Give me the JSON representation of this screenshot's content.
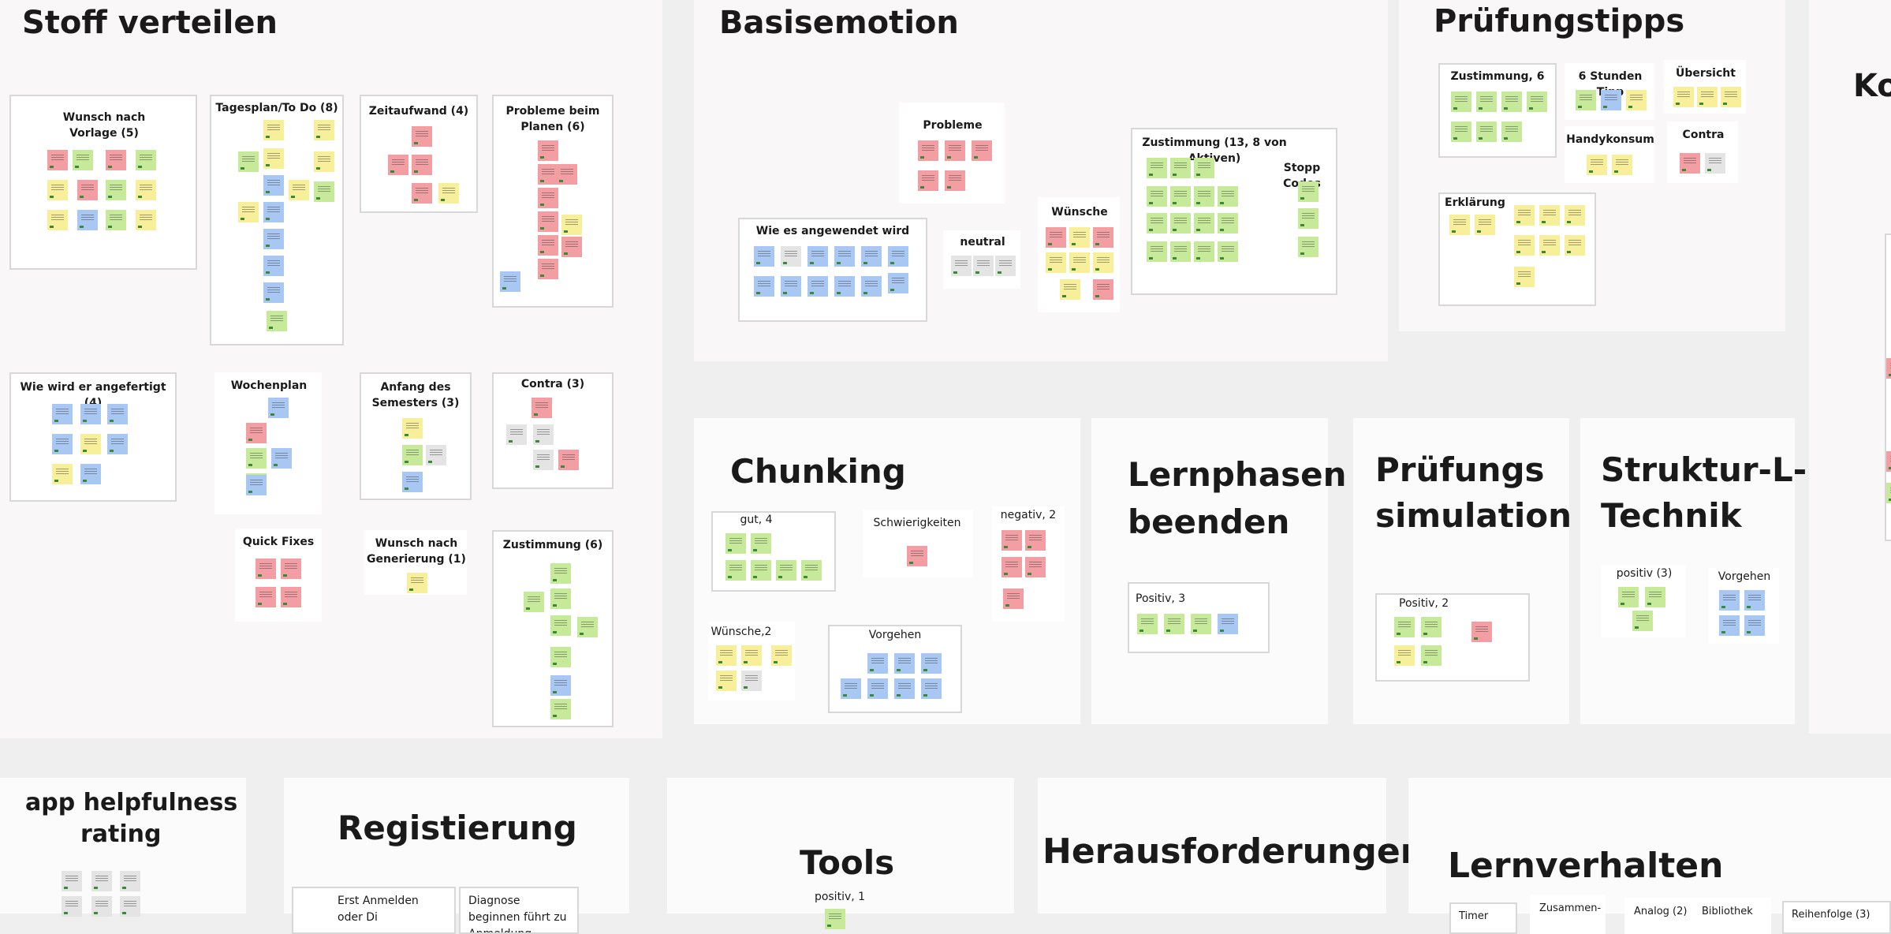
{
  "board": {
    "stoff_verteilen": {
      "title": "Stoff verteilen",
      "groups": {
        "wunsch_vorlage": "Wunsch nach Vorlage (5)",
        "tagesplan": "Tagesplan/To Do (8)",
        "zeitaufwand": "Zeitaufwand (4)",
        "probleme_planen": "Probleme beim Planen (6)",
        "wie_angefertigt": "Wie wird er angefertigt (4)",
        "wochenplan": "Wochenplan",
        "anfang_semester": "Anfang des Semesters (3)",
        "contra": "Contra (3)",
        "quick_fixes": "Quick Fixes",
        "wunsch_generierung": "Wunsch nach Generierung (1)",
        "zustimmung": "Zustimmung (6)"
      }
    },
    "basisemotion": {
      "title": "Basisemotion",
      "groups": {
        "probleme": "Probleme",
        "wie_angewendet": "Wie es angewendet wird",
        "neutral": "neutral",
        "wuensche": "Wünsche",
        "zustimmung": "Zustimmung (13, 8 von Aktiven)",
        "stopp_codes": "Stopp Codes"
      }
    },
    "pruefungstipps": {
      "title": "Prüfungstipps",
      "groups": {
        "zustimmung": "Zustimmung, 6",
        "sechs_stunden": "6 Stunden Tipp",
        "uebersicht": "Übersicht",
        "handykonsum": "Handykonsum",
        "contra": "Contra",
        "erklaerung": "Erklärung"
      }
    },
    "ko_partial": {
      "title": "Ko"
    },
    "chunking": {
      "title": "Chunking",
      "groups": {
        "gut": "gut, 4",
        "schwierigkeiten": "Schwierigkeiten",
        "negativ": "negativ, 2",
        "wuensche": "Wünsche,2",
        "vorgehen": "Vorgehen"
      }
    },
    "lernphasen": {
      "title_line1": "Lernphasen",
      "title_line2": "beenden",
      "groups": {
        "positiv": "Positiv, 3"
      }
    },
    "pruefungssimulation": {
      "title_line1": "Prüfungs",
      "title_line2": "simulation",
      "groups": {
        "positiv": "Positiv, 2"
      }
    },
    "struktur": {
      "title_line1": "Struktur-L-",
      "title_line2": "Technik",
      "groups": {
        "positiv": "positiv (3)",
        "vorgehen": "Vorgehen"
      }
    },
    "app_rating": {
      "title_line1": "app helpfulness",
      "title_line2": "rating"
    },
    "registrierung": {
      "title": "Registierung",
      "cards": {
        "erst_anmelden": "Erst Anmelden oder Di",
        "diagnose": "Diagnose beginnen führt zu Anmeldung"
      }
    },
    "tools": {
      "title": "Tools",
      "groups": {
        "positiv": "positiv, 1"
      }
    },
    "herausforderungen": {
      "title": "Herausforderungen"
    },
    "lernverhalten": {
      "title": "Lernverhalten",
      "cards": {
        "timer": "Timer",
        "zusammen": "Zusammen-",
        "analog": "Analog (2)",
        "bibliothek": "Bibliothek",
        "reihenfolge": "Reihenfolge (3)"
      }
    }
  },
  "colors": {
    "note_yellow": "#f8ef9a",
    "note_green": "#c6ea9a",
    "note_blue": "#a9c7f3",
    "note_red": "#f39ea3",
    "note_grey": "#e4e4e4",
    "canvas": "#efefef"
  }
}
